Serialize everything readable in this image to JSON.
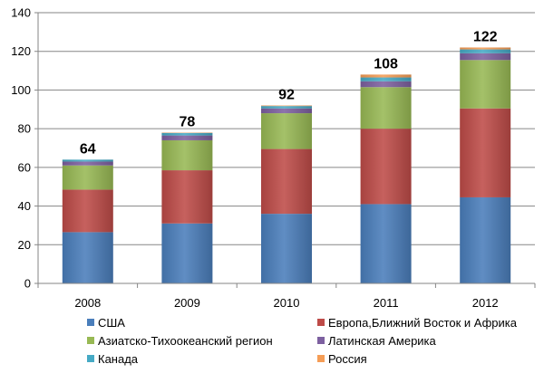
{
  "chart_data": {
    "type": "bar",
    "stacked": true,
    "categories": [
      "2008",
      "2009",
      "2010",
      "2011",
      "2012"
    ],
    "series": [
      {
        "name": "США",
        "color": "#4a7ebb",
        "values": [
          26.5,
          31,
          36,
          41,
          44.5
        ]
      },
      {
        "name": "Европа,Ближний Восток и Африка",
        "color": "#be4b48",
        "values": [
          22,
          27.5,
          33.5,
          39,
          46
        ]
      },
      {
        "name": "Азиатско-Тихоокеанский регион",
        "color": "#98b954",
        "values": [
          12.5,
          15.5,
          18.5,
          21.5,
          25
        ]
      },
      {
        "name": "Латинская Америка",
        "color": "#7d60a0",
        "values": [
          2,
          2.5,
          2.5,
          3,
          3.5
        ]
      },
      {
        "name": "Канада",
        "color": "#46aac5",
        "values": [
          1,
          1.3,
          1.2,
          2,
          2
        ]
      },
      {
        "name": "Россия",
        "color": "#f59d56",
        "values": [
          0,
          0.2,
          0.3,
          1.5,
          1
        ]
      }
    ],
    "totals": [
      "64",
      "78",
      "92",
      "108",
      "122"
    ],
    "ylim": [
      0,
      140
    ],
    "yticks": [
      "0",
      "20",
      "40",
      "60",
      "80",
      "100",
      "120",
      "140"
    ],
    "grid": true,
    "legend_position": "bottom",
    "title": "",
    "xlabel": "",
    "ylabel": ""
  }
}
